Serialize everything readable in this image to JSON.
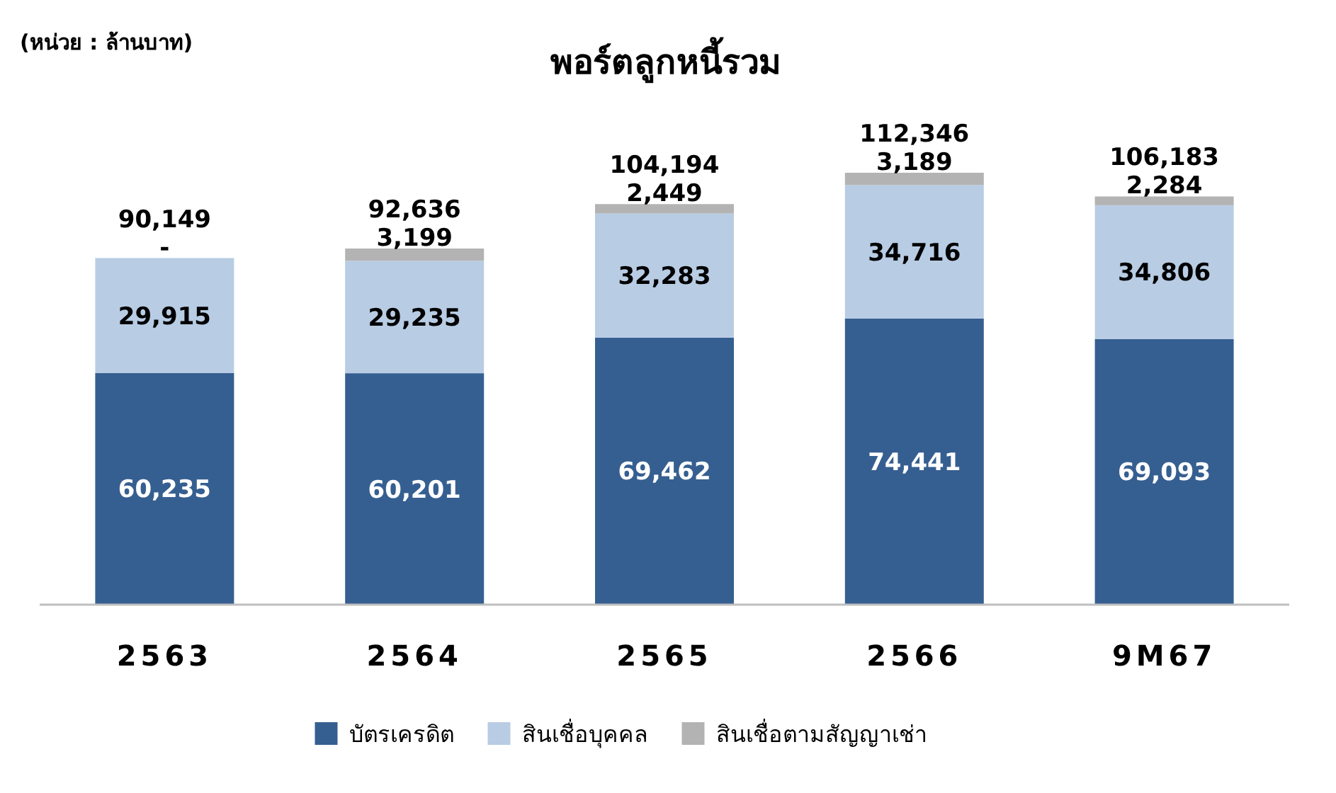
{
  "chart_data": {
    "type": "bar",
    "title": "พอร์ตลูกหนี้รวม",
    "annotations": [
      "(หน่วย : ล้านบาท)"
    ],
    "categories": [
      "2563",
      "2564",
      "2565",
      "2566",
      "9M67"
    ],
    "stacked": true,
    "legend": "bottom",
    "series": [
      {
        "name": "บัตรเครดิต",
        "color": "#365f91",
        "values": [
          60235,
          60201,
          69462,
          74441,
          69093
        ],
        "value_labels": [
          "60,235",
          "60,201",
          "69,462",
          "74,441",
          "69,093"
        ]
      },
      {
        "name": "สินเชื่อบุคคล",
        "color": "#b8cce4",
        "values": [
          29915,
          29235,
          32283,
          34716,
          34806
        ],
        "value_labels": [
          "29,915",
          "29,235",
          "32,283",
          "34,716",
          "34,806"
        ]
      },
      {
        "name": "สินเชื่อตามสัญญาเช่า",
        "color": "#b3b3b3",
        "values": [
          0,
          3199,
          2449,
          3189,
          2284
        ],
        "value_labels": [
          "-",
          "3,199",
          "2,449",
          "3,189",
          "2,284"
        ]
      }
    ],
    "totals": [
      "90,149",
      "92,636",
      "104,194",
      "112,346",
      "106,183"
    ]
  }
}
